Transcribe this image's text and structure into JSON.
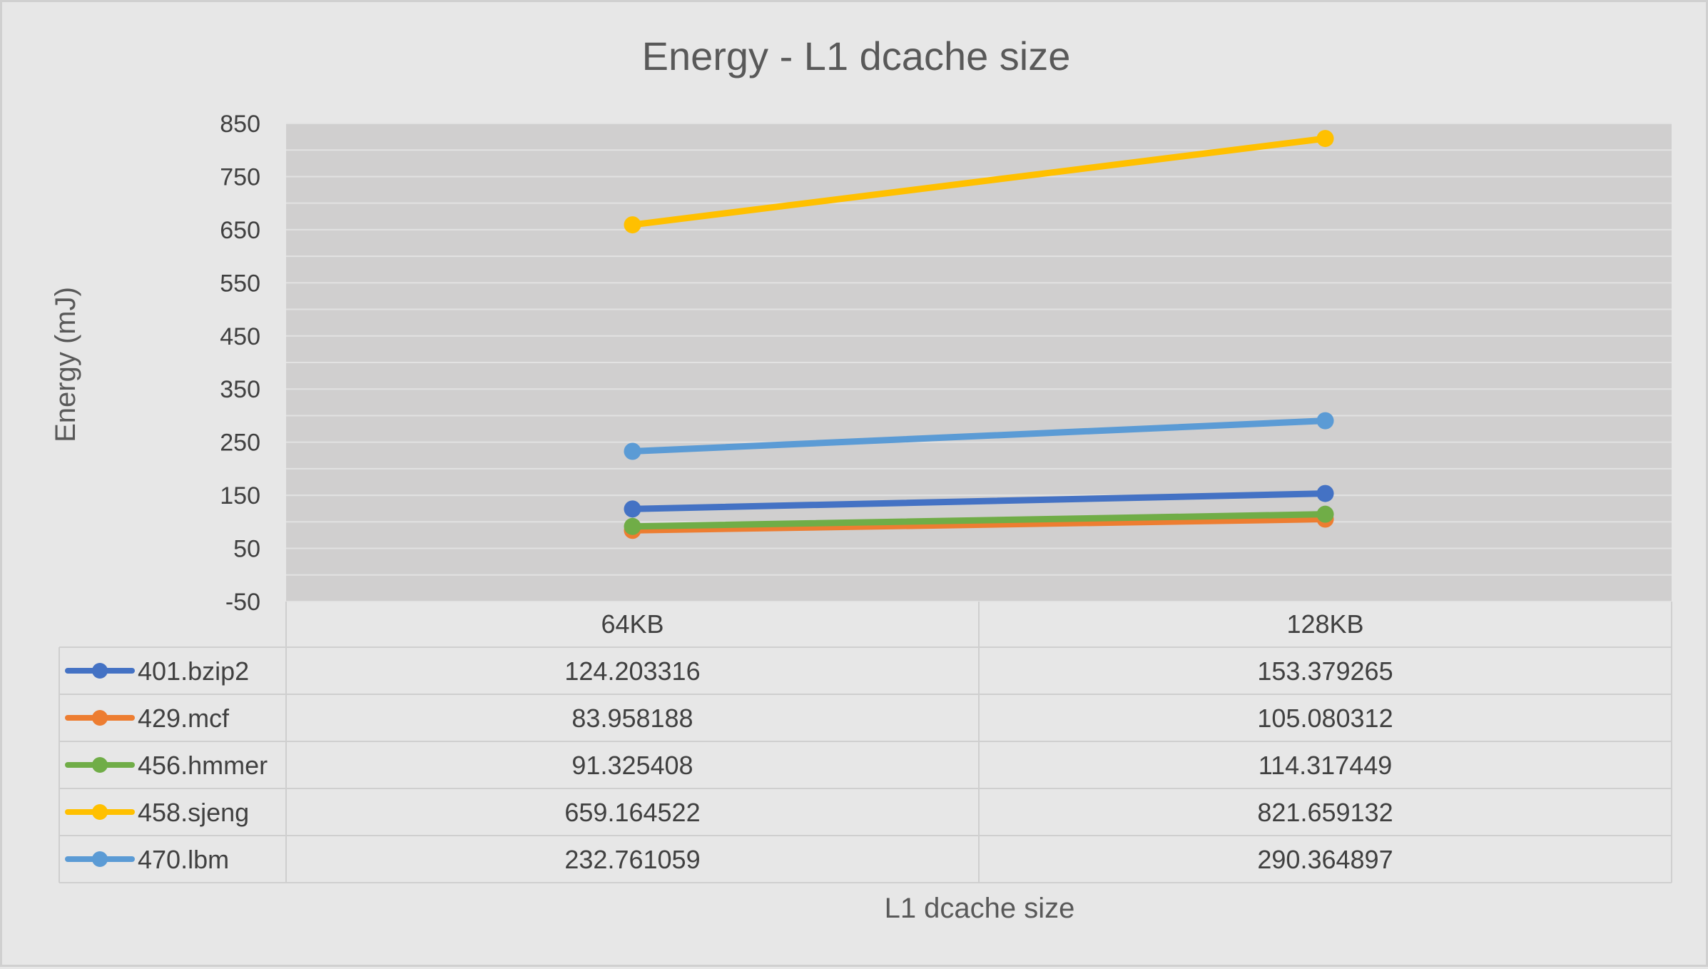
{
  "chart_data": {
    "type": "line",
    "title": "Energy - L1 dcache size",
    "xlabel": "L1 dcache size",
    "ylabel": "Energy (mJ)",
    "categories": [
      "64KB",
      "128KB"
    ],
    "ylim": [
      -50,
      850
    ],
    "yticks": [
      850,
      750,
      650,
      550,
      450,
      350,
      250,
      150,
      50,
      -50
    ],
    "series": [
      {
        "name": "401.bzip2",
        "color": "#4472c4",
        "values": [
          124.203316,
          153.379265
        ],
        "labels": [
          "124.203316",
          "153.379265"
        ]
      },
      {
        "name": "429.mcf",
        "color": "#ed7d31",
        "values": [
          83.958188,
          105.080312
        ],
        "labels": [
          "83.958188",
          "105.080312"
        ]
      },
      {
        "name": "456.hmmer",
        "color": "#70ad47",
        "values": [
          91.325408,
          114.317449
        ],
        "labels": [
          "91.325408",
          "114.317449"
        ]
      },
      {
        "name": "458.sjeng",
        "color": "#ffc000",
        "values": [
          659.164522,
          821.659132
        ],
        "labels": [
          "659.164522",
          "821.659132"
        ]
      },
      {
        "name": "470.lbm",
        "color": "#5b9bd5",
        "values": [
          232.761059,
          290.364897
        ],
        "labels": [
          "232.761059",
          "290.364897"
        ]
      }
    ],
    "grid": true,
    "legend": "data-table"
  }
}
